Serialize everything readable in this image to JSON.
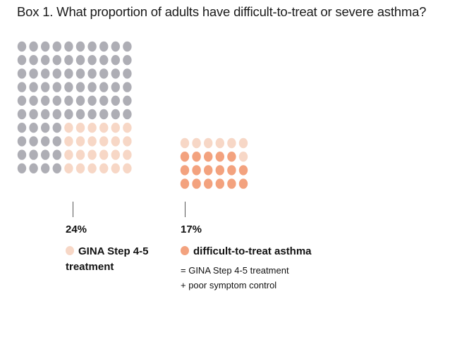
{
  "title": "Box 1. What proportion of adults have difficult-to-treat or severe asthma?",
  "colors": {
    "grey": "#aeaeb5",
    "light": "#f7d7c6",
    "orange": "#f3a27e"
  },
  "left_group": {
    "percent": "24%",
    "legend_label": "GINA Step 4-5 treatment",
    "legend_icon": "light-peach-dot-icon",
    "grid_rows": 10,
    "grid_cols": 10,
    "highlighted_value": 24
  },
  "right_group": {
    "percent": "17%",
    "legend_label": "difficult-to-treat asthma",
    "legend_icon": "orange-dot-icon",
    "note_line1": "= GINA Step 4-5 treatment",
    "note_line2": "+ poor symptom control",
    "grid_rows": 4,
    "grid_cols": 6,
    "highlighted_value": 17
  }
}
